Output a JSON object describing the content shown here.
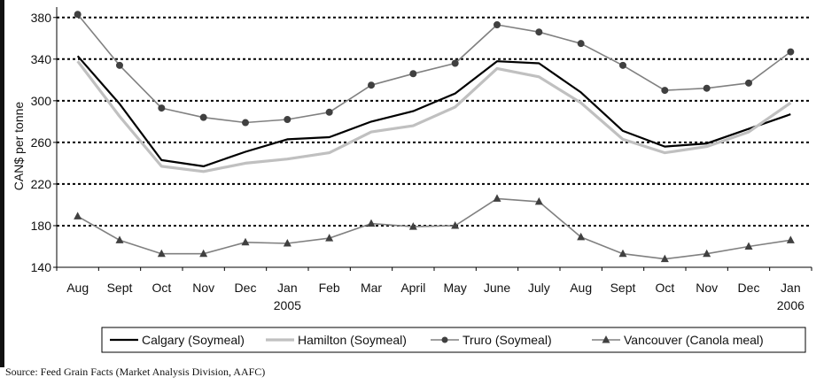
{
  "chart_data": {
    "type": "line",
    "title": "",
    "xlabel": "",
    "ylabel": "CAN$ per tonne",
    "ylim": [
      140,
      390
    ],
    "yticks": [
      140,
      180,
      220,
      260,
      300,
      340,
      380
    ],
    "grid": "horizontal dotted at 180, 220, 260, 300, 340, 380",
    "legend_position": "bottom",
    "categories": [
      "Aug",
      "Sept",
      "Oct",
      "Nov",
      "Dec",
      "Jan",
      "Feb",
      "Mar",
      "April",
      "May",
      "June",
      "July",
      "Aug",
      "Sept",
      "Oct",
      "Nov",
      "Dec",
      "Jan"
    ],
    "year_labels": [
      {
        "category_index": 5,
        "label": "2005"
      },
      {
        "category_index": 17,
        "label": "2006"
      }
    ],
    "series": [
      {
        "name": "Calgary (Soymeal)",
        "color": "#000000",
        "marker": "none",
        "values": [
          343,
          297,
          243,
          237,
          251,
          263,
          265,
          280,
          290,
          307,
          338,
          336,
          308,
          271,
          256,
          259,
          273,
          287
        ]
      },
      {
        "name": "Hamilton (Soymeal)",
        "color": "#c0c0c0",
        "marker": "none",
        "values": [
          338,
          285,
          237,
          232,
          240,
          244,
          250,
          270,
          276,
          294,
          331,
          323,
          298,
          263,
          250,
          256,
          270,
          298
        ]
      },
      {
        "name": "Truro (Soymeal)",
        "color": "#808080",
        "marker": "circle",
        "values": [
          383,
          334,
          293,
          284,
          279,
          282,
          289,
          315,
          326,
          336,
          373,
          366,
          355,
          334,
          310,
          312,
          317,
          347
        ]
      },
      {
        "name": "Vancouver (Canola meal)",
        "color": "#808080",
        "marker": "triangle",
        "values": [
          189,
          166,
          153,
          153,
          164,
          163,
          168,
          182,
          179,
          180,
          206,
          203,
          169,
          153,
          148,
          153,
          160,
          166
        ]
      }
    ]
  },
  "source_note": "Source: Feed Grain Facts (Market Analysis Division, AAFC)"
}
